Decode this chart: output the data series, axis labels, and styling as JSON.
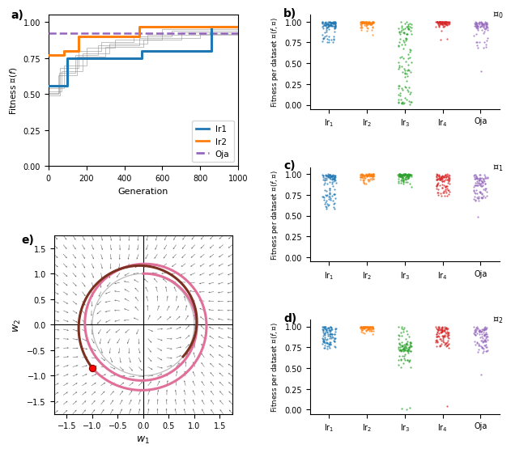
{
  "panel_a": {
    "xlabel": "Generation",
    "ylabel": "Fitness $\\mathcal{F}(f)$",
    "xlim": [
      0,
      1000
    ],
    "ylim": [
      0.0,
      1.05
    ],
    "lr1_color": "#1f77b4",
    "lr2_color": "#ff7f0e",
    "oja_color": "#9467bd",
    "gray_color": "#888888",
    "oja_y": 0.925
  },
  "panel_b": {
    "task_label": "$\\mathcal{T}_0$",
    "ylabel": "Fitness per dataset $\\mathcal{F}(f, \\mathcal{D})$",
    "categories": [
      "lr$_1$",
      "lr$_2$",
      "lr$_3$",
      "lr$_4$",
      "Oja"
    ],
    "colors": [
      "#1f77b4",
      "#ff7f0e",
      "#2ca02c",
      "#d62728",
      "#9467bd"
    ]
  },
  "panel_c": {
    "task_label": "$\\mathcal{T}_1$",
    "ylabel": "Fitness per dataset $\\mathcal{F}(f, \\mathcal{D})$",
    "categories": [
      "lr$_1$",
      "lr$_2$",
      "lr$_3$",
      "lr$_4$",
      "Oja"
    ],
    "colors": [
      "#1f77b4",
      "#ff7f0e",
      "#2ca02c",
      "#d62728",
      "#9467bd"
    ]
  },
  "panel_d": {
    "task_label": "$\\mathcal{T}_2$",
    "ylabel": "Fitness per dataset $\\mathcal{F}(f, \\mathcal{D})$",
    "categories": [
      "lr$_1$",
      "lr$_2$",
      "lr$_3$",
      "lr$_4$",
      "Oja"
    ],
    "colors": [
      "#1f77b4",
      "#ff7f0e",
      "#2ca02c",
      "#d62728",
      "#9467bd"
    ]
  },
  "panel_e": {
    "xlabel": "$w_1$",
    "ylabel": "$w_2$",
    "xlim": [
      -1.75,
      1.75
    ],
    "ylim": [
      -1.75,
      1.75
    ],
    "pink_color": "#e0709a",
    "brown_color": "#7b3020",
    "gray_circle_color": "#aaaaaa",
    "red_dot_color": "#ff0000"
  }
}
